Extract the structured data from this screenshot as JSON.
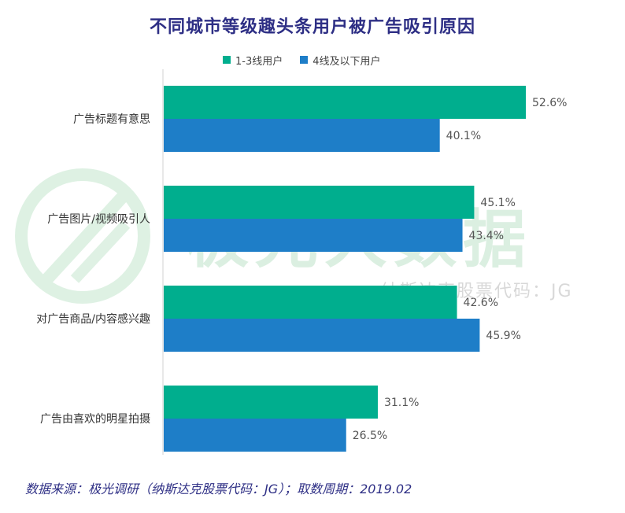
{
  "watermark": {
    "main": "极光大数据",
    "sub": "纳斯达克股票代码：JG"
  },
  "source": "数据来源：极光调研（纳斯达克股票代码：JG）；取数周期：2019.02",
  "chart_data": {
    "type": "bar",
    "orientation": "horizontal",
    "title": "不同城市等级趣头条用户被广告吸引原因",
    "categories": [
      "广告标题有意思",
      "广告图片/视频吸引人",
      "对广告商品/内容感兴趣",
      "广告由喜欢的明星拍摄"
    ],
    "series": [
      {
        "name": "1-3线用户",
        "color": "#00ae8e",
        "values": [
          52.6,
          45.1,
          42.6,
          31.1
        ]
      },
      {
        "name": "4线及以下用户",
        "color": "#1e7ec8",
        "values": [
          40.1,
          43.4,
          45.9,
          26.5
        ]
      }
    ],
    "value_format": "percent_1dp",
    "xlim": [
      0,
      60
    ],
    "legend_position": "top",
    "grid": false
  }
}
